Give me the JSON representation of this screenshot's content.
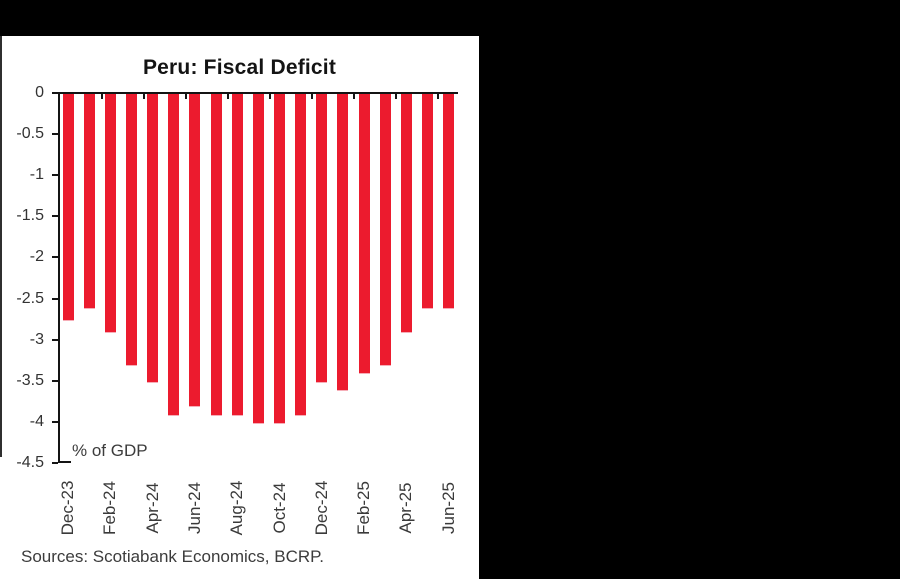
{
  "chart": {
    "title": "Peru: Fiscal Deficit",
    "unit_label": "% of GDP",
    "source_note": "Sources: Scotiabank Economics, BCRP."
  },
  "colors": {
    "bar_red": "#EC1B2E",
    "panel_black": "#000000",
    "chart_background": "#FFFFFF",
    "axis_black": "#141414",
    "label_gray": "#3A3A3A"
  },
  "chart_data": {
    "type": "bar",
    "title": "Peru: Fiscal Deficit",
    "ylabel": "% of GDP",
    "categories": [
      "Dec-23",
      "Jan-24",
      "Feb-24",
      "Mar-24",
      "Apr-24",
      "May-24",
      "Jun-24",
      "Jul-24",
      "Aug-24",
      "Sep-24",
      "Oct-24",
      "Nov-24",
      "Dec-24",
      "Jan-25",
      "Feb-25",
      "Mar-25",
      "Apr-25",
      "May-25",
      "Jun-25"
    ],
    "values": [
      -2.75,
      -2.6,
      -2.9,
      -3.3,
      -3.5,
      -3.9,
      -3.8,
      -3.9,
      -3.9,
      -4.0,
      -4.0,
      -3.9,
      -3.5,
      -3.6,
      -3.4,
      -3.3,
      -2.9,
      -2.6,
      -2.6
    ],
    "x_tick_labels_shown": [
      "Dec-23",
      "Feb-24",
      "Apr-24",
      "Jun-24",
      "Aug-24",
      "Oct-24",
      "Dec-24",
      "Feb-25",
      "Apr-25",
      "Jun-25"
    ],
    "y_tick_labels": [
      "0",
      "-0.5",
      "-1",
      "-1.5",
      "-2",
      "-2.5",
      "-3",
      "-3.5",
      "-4",
      "-4.5"
    ],
    "ylim": [
      -4.5,
      0
    ],
    "grid": false,
    "legend": "none",
    "bar_color": "#EC1B2E",
    "source": "Sources: Scotiabank Economics, BCRP."
  }
}
